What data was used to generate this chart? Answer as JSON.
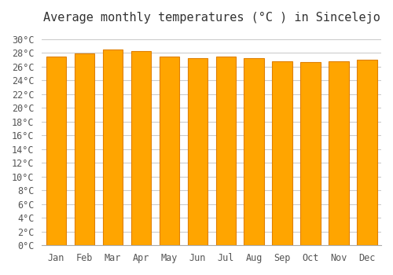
{
  "title": "Average monthly temperatures (°C ) in Sincelejo",
  "months": [
    "Jan",
    "Feb",
    "Mar",
    "Apr",
    "May",
    "Jun",
    "Jul",
    "Aug",
    "Sep",
    "Oct",
    "Nov",
    "Dec"
  ],
  "values": [
    27.5,
    27.9,
    28.5,
    28.2,
    27.5,
    27.2,
    27.5,
    27.2,
    26.8,
    26.6,
    26.8,
    27.0
  ],
  "bar_color_main": "#FFA500",
  "bar_color_edge": "#E08000",
  "background_color": "#FFFFFF",
  "plot_bg_color": "#FFFFFF",
  "ylim": [
    0,
    31
  ],
  "ytick_step": 2,
  "title_fontsize": 11,
  "tick_fontsize": 8.5,
  "grid_color": "#CCCCCC",
  "grid_linewidth": 0.8
}
